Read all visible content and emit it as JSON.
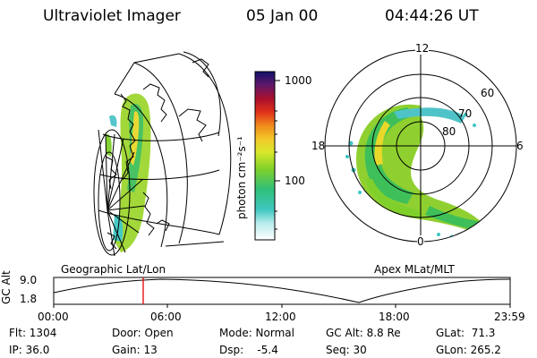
{
  "header": {
    "title": "Ultraviolet Imager",
    "date": "05 Jan 00",
    "time": "04:44:26 UT"
  },
  "colorbar": {
    "unit_label": "photon cm⁻²s⁻¹",
    "ticks": [
      "1000",
      "100"
    ]
  },
  "geo_panel": {
    "label": "Geographic Lat/Lon"
  },
  "polar_panel": {
    "label": "Apex MLat/MLT",
    "mlt_labels": [
      "12",
      "18",
      "6",
      "0"
    ],
    "lat_labels": [
      "60",
      "70",
      "80"
    ]
  },
  "altitude_plot": {
    "ylabel": "GC Alt",
    "y_ticks": [
      "9.0",
      "1.8"
    ],
    "x_ticks": [
      "00:00",
      "06:00",
      "12:00",
      "18:00",
      "23:59"
    ],
    "marker_time": "04:44"
  },
  "info": {
    "flt": "Flt: 1304",
    "door": "Door: Open",
    "mode": "Mode: Normal",
    "gc_alt": "GC Alt: 8.8 Re",
    "glat": "GLat:  71.3",
    "ip": "IP: 36.0",
    "gain": "Gain: 13",
    "dsp": "Dsp:    -5.4",
    "seq": "Seq: 30",
    "glon": "GLon: 265.2"
  }
}
